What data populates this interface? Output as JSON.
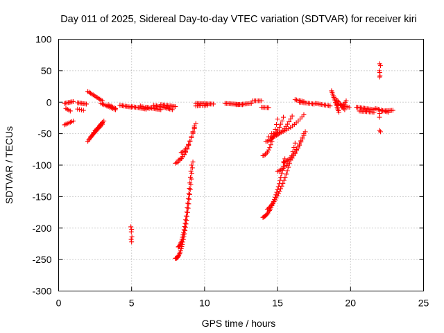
{
  "chart_data": {
    "type": "scatter",
    "title": "Day 011 of 2025, Sidereal Day-to-day VTEC variation (SDTVAR) for receiver kiri",
    "xlabel": "GPS time / hours",
    "ylabel": "SDTVAR / TECUs",
    "xlim": [
      0,
      25
    ],
    "ylim": [
      -300,
      100
    ],
    "xticks": [
      0,
      5,
      10,
      15,
      20,
      25
    ],
    "yticks": [
      100,
      50,
      0,
      -50,
      -100,
      -150,
      -200,
      -250,
      -300
    ],
    "grid": true,
    "legend": "none",
    "marker": "+",
    "color": "#ff0000",
    "segments": [
      {
        "from": [
          0.4,
          -2
        ],
        "to": [
          1.0,
          1
        ],
        "n": 8
      },
      {
        "from": [
          0.5,
          -10
        ],
        "to": [
          0.8,
          -14
        ],
        "n": 4
      },
      {
        "from": [
          0.4,
          -36
        ],
        "to": [
          1.0,
          -30
        ],
        "n": 7
      },
      {
        "from": [
          1.3,
          -1
        ],
        "to": [
          1.9,
          -3
        ],
        "n": 8
      },
      {
        "from": [
          1.3,
          -11
        ],
        "to": [
          1.7,
          -13
        ],
        "n": 4
      },
      {
        "from": [
          2.0,
          17
        ],
        "to": [
          3.0,
          2
        ],
        "n": 12
      },
      {
        "from": [
          2.0,
          -62
        ],
        "to": [
          3.0,
          -32
        ],
        "n": 16
      },
      {
        "from": [
          2.2,
          -55
        ],
        "to": [
          3.0,
          -35
        ],
        "n": 10
      },
      {
        "from": [
          2.4,
          -48
        ],
        "to": [
          3.1,
          -30
        ],
        "n": 8
      },
      {
        "from": [
          2.9,
          -2
        ],
        "to": [
          3.9,
          -12
        ],
        "n": 11
      },
      {
        "from": [
          3.4,
          -4
        ],
        "to": [
          3.9,
          -10
        ],
        "n": 6
      },
      {
        "from": [
          4.2,
          -5
        ],
        "to": [
          5.0,
          -8
        ],
        "n": 10
      },
      {
        "from": [
          5.0,
          -7
        ],
        "to": [
          6.0,
          -11
        ],
        "n": 12
      },
      {
        "from": [
          5.6,
          -6
        ],
        "to": [
          6.2,
          -10
        ],
        "n": 6
      },
      {
        "from": [
          6.0,
          -8
        ],
        "to": [
          7.0,
          -12
        ],
        "n": 12
      },
      {
        "from": [
          6.5,
          -5
        ],
        "to": [
          7.4,
          -9
        ],
        "n": 10
      },
      {
        "from": [
          7.0,
          -4
        ],
        "to": [
          8.0,
          -7
        ],
        "n": 12
      },
      {
        "from": [
          7.3,
          -9
        ],
        "to": [
          7.8,
          -12
        ],
        "n": 6
      },
      {
        "from": [
          9.4,
          -2
        ],
        "to": [
          10.6,
          -3
        ],
        "n": 14
      },
      {
        "from": [
          9.4,
          -6
        ],
        "to": [
          10.2,
          -5
        ],
        "n": 8
      },
      {
        "from": [
          11.4,
          -2
        ],
        "to": [
          12.6,
          -4
        ],
        "n": 14
      },
      {
        "from": [
          12.2,
          -4
        ],
        "to": [
          13.2,
          -2
        ],
        "n": 11
      },
      {
        "from": [
          13.3,
          2
        ],
        "to": [
          13.9,
          2
        ],
        "n": 7
      },
      {
        "from": [
          13.9,
          -8
        ],
        "to": [
          14.4,
          -9
        ],
        "n": 6
      },
      {
        "from": [
          16.2,
          4
        ],
        "to": [
          16.8,
          1
        ],
        "n": 7
      },
      {
        "from": [
          16.5,
          0
        ],
        "to": [
          17.5,
          -3
        ],
        "n": 11
      },
      {
        "from": [
          17.6,
          -2
        ],
        "to": [
          18.6,
          -6
        ],
        "n": 11
      },
      {
        "from": [
          18.7,
          18
        ],
        "to": [
          19.2,
          -16
        ],
        "n": 14
      },
      {
        "from": [
          19.0,
          5
        ],
        "to": [
          19.6,
          -12
        ],
        "n": 9
      },
      {
        "from": [
          19.1,
          -4
        ],
        "to": [
          19.9,
          -8
        ],
        "n": 9
      },
      {
        "from": [
          19.4,
          -8
        ],
        "to": [
          19.7,
          2
        ],
        "n": 5
      },
      {
        "from": [
          20.4,
          -8
        ],
        "to": [
          21.6,
          -12
        ],
        "n": 14
      },
      {
        "from": [
          20.6,
          -14
        ],
        "to": [
          21.6,
          -16
        ],
        "n": 11
      },
      {
        "from": [
          21.7,
          -10
        ],
        "to": [
          22.6,
          -16
        ],
        "n": 10
      },
      {
        "from": [
          22.1,
          -14
        ],
        "to": [
          22.9,
          -13
        ],
        "n": 9
      }
    ],
    "curves": [
      {
        "from": [
          8.0,
          -97
        ],
        "to": [
          9.3,
          -40
        ],
        "bend": -12,
        "n": 14
      },
      {
        "from": [
          8.2,
          -92
        ],
        "to": [
          9.3,
          -38
        ],
        "bend": -12,
        "n": 12
      },
      {
        "from": [
          8.4,
          -80
        ],
        "to": [
          9.4,
          -34
        ],
        "bend": -10,
        "n": 11
      },
      {
        "from": [
          8.0,
          -248
        ],
        "to": [
          9.2,
          -95
        ],
        "bend": -40,
        "n": 34
      },
      {
        "from": [
          8.2,
          -230
        ],
        "to": [
          9.1,
          -100
        ],
        "bend": -30,
        "n": 26
      },
      {
        "from": [
          14.0,
          -85
        ],
        "to": [
          15.0,
          -27
        ],
        "bend": -14,
        "n": 14
      },
      {
        "from": [
          14.2,
          -62
        ],
        "to": [
          15.4,
          -24
        ],
        "bend": -10,
        "n": 14
      },
      {
        "from": [
          14.4,
          -55
        ],
        "to": [
          16.0,
          -22
        ],
        "bend": -10,
        "n": 16
      },
      {
        "from": [
          14.6,
          -50
        ],
        "to": [
          16.8,
          -20
        ],
        "bend": -8,
        "n": 18
      },
      {
        "from": [
          14.0,
          -183
        ],
        "to": [
          15.5,
          -90
        ],
        "bend": -20,
        "n": 28
      },
      {
        "from": [
          14.3,
          -170
        ],
        "to": [
          16.2,
          -65
        ],
        "bend": -18,
        "n": 26
      },
      {
        "from": [
          15.0,
          -110
        ],
        "to": [
          16.9,
          -47
        ],
        "bend": -12,
        "n": 20
      },
      {
        "from": [
          15.4,
          -95
        ],
        "to": [
          16.8,
          -50
        ],
        "bend": -10,
        "n": 15
      }
    ],
    "points": [
      [
        4.95,
        -198
      ],
      [
        5.0,
        -202
      ],
      [
        4.98,
        -206
      ],
      [
        5.02,
        -214
      ],
      [
        4.97,
        -218
      ],
      [
        5.0,
        -222
      ],
      [
        22.0,
        61
      ],
      [
        22.05,
        58
      ],
      [
        21.97,
        50
      ],
      [
        22.0,
        47
      ],
      [
        22.02,
        42
      ],
      [
        22.0,
        40
      ],
      [
        22.0,
        -18
      ],
      [
        21.98,
        -24
      ],
      [
        22.0,
        -45
      ],
      [
        22.05,
        -47
      ]
    ]
  }
}
